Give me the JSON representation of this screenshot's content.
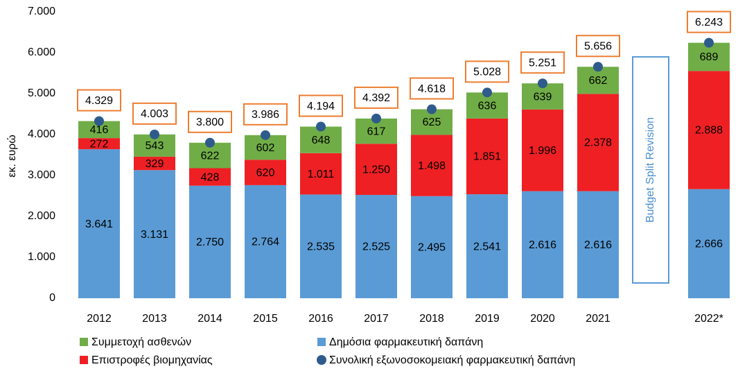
{
  "chart_data": {
    "type": "bar",
    "y_label": "εκ. ευρώ",
    "annotation": "Budget Split Revision",
    "categories": [
      "2012",
      "2013",
      "2014",
      "2015",
      "2016",
      "2017",
      "2018",
      "2019",
      "2020",
      "2021",
      null,
      "2022*"
    ],
    "series": [
      {
        "name": "Δημόσια φαρμακευτική δαπάνη",
        "color": "#5b9bd5",
        "values": [
          3641,
          3131,
          2750,
          2764,
          2535,
          2525,
          2495,
          2541,
          2616,
          2616,
          null,
          2666
        ],
        "value_labels": [
          "3.641",
          "3.131",
          "2.750",
          "2.764",
          "2.535",
          "2.525",
          "2.495",
          "2.541",
          "2.616",
          "2.616",
          null,
          "2.666"
        ]
      },
      {
        "name": "Επιστροφές βιομηχανίας",
        "color": "#ee2024",
        "values": [
          272,
          329,
          428,
          620,
          1011,
          1250,
          1498,
          1851,
          1996,
          2378,
          null,
          2888
        ],
        "value_labels": [
          "272",
          "329",
          "428",
          "620",
          "1.011",
          "1.250",
          "1.498",
          "1.851",
          "1.996",
          "2.378",
          null,
          "2.888"
        ]
      },
      {
        "name": "Συμμετοχή ασθενών",
        "color": "#70ad47",
        "values": [
          416,
          543,
          622,
          602,
          648,
          617,
          625,
          636,
          639,
          662,
          null,
          689
        ]
      },
      {
        "name": "Συνολική εξωνοσοκομειακή φαρμακευτική δαπάνη",
        "color": "#2e5b8c",
        "values": [
          4329,
          4003,
          3800,
          3986,
          4194,
          4392,
          4618,
          5028,
          5251,
          5656,
          null,
          6243
        ],
        "value_labels": [
          "4.329",
          "4.003",
          "3.800",
          "3.986",
          "4.194",
          "4.392",
          "4.618",
          "5.028",
          "5.251",
          "5.656",
          null,
          "6.243"
        ]
      }
    ],
    "ylim": [
      0,
      7000
    ],
    "yticks": [
      0,
      {
        "value": 1000,
        "label": "1.000"
      },
      {
        "value": 2000,
        "label": "2.000"
      },
      {
        "value": 3000,
        "label": "3.000"
      },
      {
        "value": 4000,
        "label": "4.000"
      },
      {
        "value": 5000,
        "label": "5.000"
      },
      {
        "value": 6000,
        "label": "6.000"
      },
      {
        "value": 7000,
        "label": "7.000"
      }
    ],
    "grid": false
  }
}
